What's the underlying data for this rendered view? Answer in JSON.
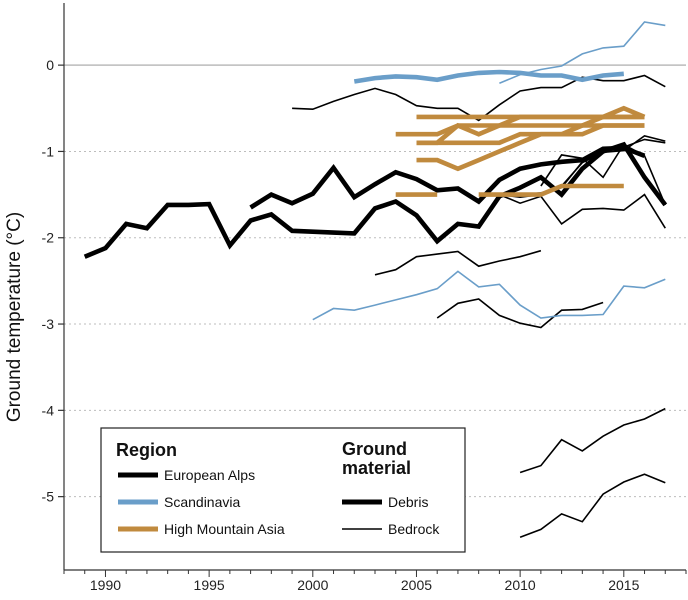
{
  "chart_data": {
    "type": "line",
    "title": "",
    "xlabel": "",
    "ylabel": "Ground temperature (°C)",
    "xlim": [
      1988,
      2018
    ],
    "ylim": [
      -5.85,
      0.72
    ],
    "x_ticks": [
      1990,
      1995,
      2000,
      2005,
      2010,
      2015
    ],
    "y_ticks": [
      0,
      -1,
      -2,
      -3,
      -4,
      -5
    ],
    "zero_line": true,
    "grid": "horizontal dotted",
    "legend": {
      "placement": "bottom-left",
      "region_title": "Region",
      "region_entries": [
        {
          "label": "European Alps",
          "color": "#000000"
        },
        {
          "label": "Scandinavia",
          "color": "#6a9ec9"
        },
        {
          "label": "High Mountain Asia",
          "color": "#c08a3e"
        }
      ],
      "material_title_line1": "Ground",
      "material_title_line2": "material",
      "material_entries": [
        {
          "label": "Debris",
          "style": "thick"
        },
        {
          "label": "Bedrock",
          "style": "thin"
        }
      ]
    },
    "series": [
      {
        "region": "European Alps",
        "material": "Debris",
        "x": [
          1989,
          1990,
          1991,
          1992,
          1993,
          1994,
          1995,
          1996,
          1997,
          1998,
          1999,
          2000,
          2001,
          2002,
          2003,
          2004,
          2005,
          2006,
          2007,
          2008,
          2009,
          2010,
          2011,
          2012,
          2013,
          2014,
          2015,
          2016,
          2017
        ],
        "y": [
          -2.22,
          -2.12,
          -1.84,
          -1.89,
          -1.62,
          -1.62,
          -1.61,
          -2.09,
          -1.8,
          -1.73,
          -1.92,
          -1.93,
          -1.94,
          -1.95,
          -1.66,
          -1.58,
          -1.74,
          -2.04,
          -1.84,
          -1.87,
          -1.52,
          -1.42,
          -1.3,
          -1.5,
          -1.2,
          -1.0,
          -0.92,
          -1.3,
          -1.62
        ]
      },
      {
        "region": "European Alps",
        "material": "Debris",
        "x": [
          1997,
          1998,
          1999,
          2000,
          2001,
          2002,
          2003,
          2004,
          2005,
          2006,
          2007,
          2008,
          2009,
          2010,
          2011,
          2012,
          2013,
          2014,
          2015,
          2016
        ],
        "y": [
          -1.65,
          -1.5,
          -1.6,
          -1.49,
          -1.19,
          -1.53,
          -1.38,
          -1.24,
          -1.32,
          -1.45,
          -1.43,
          -1.58,
          -1.33,
          -1.2,
          -1.15,
          -1.12,
          -1.1,
          -0.97,
          -0.96,
          -1.05
        ]
      },
      {
        "region": "European Alps",
        "material": "Bedrock",
        "x": [
          1999,
          2000,
          2001,
          2002,
          2003,
          2004,
          2005,
          2006,
          2007,
          2008,
          2009,
          2010,
          2011,
          2012,
          2013,
          2014,
          2015,
          2016,
          2017
        ],
        "y": [
          -0.5,
          -0.51,
          -0.42,
          -0.34,
          -0.27,
          -0.34,
          -0.47,
          -0.5,
          -0.5,
          -0.64,
          -0.46,
          -0.3,
          -0.26,
          -0.26,
          -0.14,
          -0.18,
          -0.18,
          -0.12,
          -0.25
        ]
      },
      {
        "region": "European Alps",
        "material": "Bedrock",
        "x": [
          2009,
          2010,
          2011,
          2012,
          2013,
          2014,
          2015,
          2016,
          2017
        ],
        "y": [
          -1.5,
          -1.53,
          -1.5,
          -1.4,
          -1.13,
          -1.01,
          -0.99,
          -0.82,
          -0.88
        ]
      },
      {
        "region": "European Alps",
        "material": "Bedrock",
        "x": [
          2011,
          2012,
          2013,
          2014,
          2015,
          2016,
          2017
        ],
        "y": [
          -1.4,
          -1.04,
          -1.08,
          -1.3,
          -0.92,
          -1.05,
          -1.62
        ]
      },
      {
        "region": "European Alps",
        "material": "Bedrock",
        "x": [
          2009,
          2010,
          2011,
          2012,
          2013,
          2014,
          2015,
          2016,
          2017
        ],
        "y": [
          -1.5,
          -1.5,
          -1.48,
          -1.42,
          -1.12,
          -1.0,
          -0.95,
          -0.86,
          -0.9
        ]
      },
      {
        "region": "European Alps",
        "material": "Bedrock",
        "x": [
          2009,
          2010,
          2011,
          2012,
          2013,
          2014,
          2015,
          2016,
          2017
        ],
        "y": [
          -1.5,
          -1.6,
          -1.52,
          -1.84,
          -1.67,
          -1.66,
          -1.68,
          -1.5,
          -1.89
        ]
      },
      {
        "region": "European Alps",
        "material": "Bedrock",
        "x": [
          2003,
          2004,
          2005,
          2006,
          2007,
          2008,
          2009,
          2010,
          2011
        ],
        "y": [
          -2.43,
          -2.37,
          -2.22,
          -2.19,
          -2.16,
          -2.33,
          -2.27,
          -2.22,
          -2.15
        ]
      },
      {
        "region": "European Alps",
        "material": "Bedrock",
        "x": [
          2006,
          2007,
          2008,
          2009,
          2010,
          2011,
          2012,
          2013,
          2014
        ],
        "y": [
          -2.93,
          -2.76,
          -2.71,
          -2.9,
          -2.99,
          -3.04,
          -2.84,
          -2.83,
          -2.75
        ]
      },
      {
        "region": "European Alps",
        "material": "Bedrock",
        "x": [
          2010,
          2011,
          2012,
          2013,
          2014,
          2015,
          2016,
          2017
        ],
        "y": [
          -4.72,
          -4.64,
          -4.34,
          -4.47,
          -4.3,
          -4.17,
          -4.1,
          -3.98
        ]
      },
      {
        "region": "European Alps",
        "material": "Bedrock",
        "x": [
          2010,
          2011,
          2012,
          2013,
          2014,
          2015,
          2016,
          2017
        ],
        "y": [
          -5.47,
          -5.38,
          -5.2,
          -5.29,
          -4.97,
          -4.83,
          -4.74,
          -4.84
        ]
      },
      {
        "region": "Scandinavia",
        "material": "Debris",
        "x": [
          2002,
          2003,
          2004,
          2005,
          2006,
          2007,
          2008,
          2009,
          2010,
          2011,
          2012,
          2013,
          2014,
          2015
        ],
        "y": [
          -0.19,
          -0.15,
          -0.13,
          -0.14,
          -0.17,
          -0.12,
          -0.09,
          -0.08,
          -0.09,
          -0.12,
          -0.12,
          -0.17,
          -0.12,
          -0.1
        ]
      },
      {
        "region": "Scandinavia",
        "material": "Bedrock",
        "x": [
          2009,
          2010,
          2011,
          2012,
          2013,
          2014,
          2015,
          2016,
          2017
        ],
        "y": [
          -0.21,
          -0.11,
          -0.05,
          -0.01,
          0.13,
          0.2,
          0.22,
          0.5,
          0.46
        ]
      },
      {
        "region": "Scandinavia",
        "material": "Bedrock",
        "x": [
          2000,
          2001,
          2002,
          2003,
          2004,
          2005,
          2006,
          2007,
          2008,
          2009,
          2010,
          2011,
          2012,
          2013,
          2014,
          2015,
          2016,
          2017
        ],
        "y": [
          -2.95,
          -2.82,
          -2.84,
          -2.78,
          -2.72,
          -2.66,
          -2.59,
          -2.39,
          -2.57,
          -2.54,
          -2.78,
          -2.93,
          -2.9,
          -2.9,
          -2.89,
          -2.56,
          -2.58,
          -2.48
        ]
      },
      {
        "region": "High Mountain Asia",
        "material": "Debris",
        "x": [
          2005,
          2006,
          2007,
          2008,
          2009,
          2010,
          2011,
          2012,
          2013,
          2014,
          2015,
          2016
        ],
        "y": [
          -0.6,
          -0.6,
          -0.6,
          -0.6,
          -0.6,
          -0.6,
          -0.6,
          -0.6,
          -0.6,
          -0.6,
          -0.6,
          -0.6
        ]
      },
      {
        "region": "High Mountain Asia",
        "material": "Debris",
        "x": [
          2004,
          2005,
          2006,
          2007,
          2008,
          2009,
          2010,
          2011,
          2012,
          2013,
          2014,
          2015,
          2016
        ],
        "y": [
          -0.8,
          -0.8,
          -0.8,
          -0.7,
          -0.7,
          -0.7,
          -0.7,
          -0.7,
          -0.7,
          -0.7,
          -0.7,
          -0.7,
          -0.7
        ]
      },
      {
        "region": "High Mountain Asia",
        "material": "Debris",
        "x": [
          2005,
          2006,
          2007,
          2008,
          2009,
          2010,
          2011,
          2012,
          2013,
          2014,
          2015,
          2016
        ],
        "y": [
          -0.9,
          -0.9,
          -0.7,
          -0.8,
          -0.7,
          -0.6,
          -0.6,
          -0.6,
          -0.6,
          -0.6,
          -0.5,
          -0.6
        ]
      },
      {
        "region": "High Mountain Asia",
        "material": "Debris",
        "x": [
          2005,
          2006,
          2007,
          2008,
          2009,
          2010,
          2011,
          2012,
          2013,
          2014,
          2015,
          2016
        ],
        "y": [
          -0.9,
          -0.9,
          -0.9,
          -0.9,
          -0.9,
          -0.8,
          -0.8,
          -0.8,
          -0.7,
          -0.6,
          -0.6,
          -0.6
        ]
      },
      {
        "region": "High Mountain Asia",
        "material": "Debris",
        "x": [
          2005,
          2006,
          2007,
          2008,
          2009,
          2010,
          2011,
          2012,
          2013,
          2014,
          2015,
          2016
        ],
        "y": [
          -1.1,
          -1.1,
          -1.2,
          -1.1,
          -1.0,
          -0.9,
          -0.8,
          -0.8,
          -0.8,
          -0.7,
          -0.7,
          -0.7
        ]
      },
      {
        "region": "High Mountain Asia",
        "material": "Debris",
        "x": [
          2004,
          2005,
          2006
        ],
        "y": [
          -1.5,
          -1.5,
          -1.5
        ]
      },
      {
        "region": "High Mountain Asia",
        "material": "Debris",
        "x": [
          2008,
          2009,
          2010,
          2011,
          2012,
          2013,
          2014,
          2015
        ],
        "y": [
          -1.5,
          -1.5,
          -1.5,
          -1.5,
          -1.4,
          -1.4,
          -1.4,
          -1.4
        ]
      }
    ]
  }
}
